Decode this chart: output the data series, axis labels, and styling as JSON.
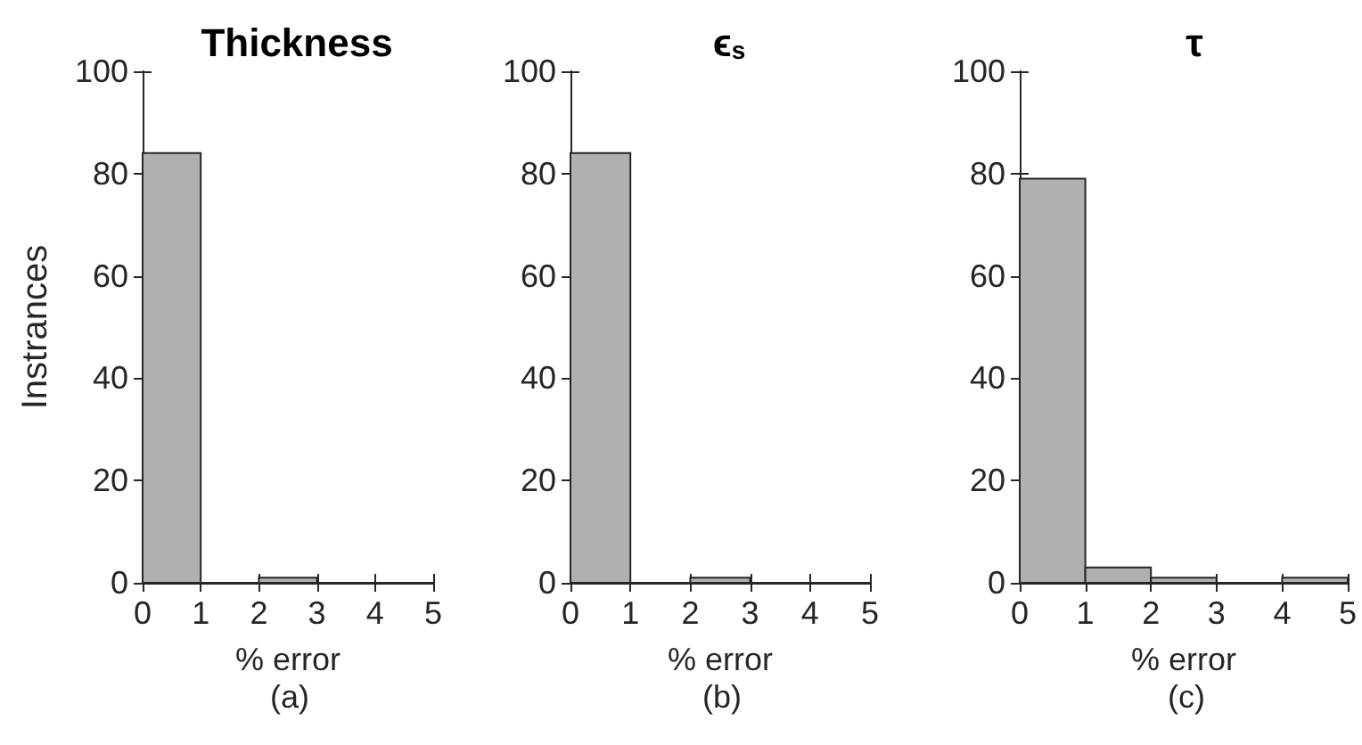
{
  "chart_data": [
    {
      "type": "histogram",
      "title": "Thickness",
      "xlabel": "% error",
      "ylabel": "Instrances",
      "bins": [
        0,
        1,
        2,
        3,
        4,
        5
      ],
      "values": [
        84,
        0,
        1,
        0,
        0
      ],
      "color": "#b0b0b0",
      "xlim": [
        0,
        5
      ],
      "xticks": [
        0,
        1,
        2,
        3,
        4,
        5
      ],
      "ylim": [
        0,
        100
      ],
      "yticks": [
        0,
        20,
        40,
        60,
        80,
        100
      ],
      "annotations": [
        "(a)"
      ]
    },
    {
      "type": "histogram",
      "title": "ϵ$_{s}$",
      "xlabel": "% error",
      "bins": [
        0,
        1,
        2,
        3,
        4,
        5
      ],
      "values": [
        84,
        0,
        1,
        0,
        0
      ],
      "color": "#b0b0b0",
      "xlim": [
        0,
        5
      ],
      "xticks": [
        0,
        1,
        2,
        3,
        4,
        5
      ],
      "ylim": [
        0,
        100
      ],
      "yticks": [
        0,
        20,
        40,
        60,
        80,
        100
      ],
      "annotations": [
        "(b)"
      ]
    },
    {
      "type": "histogram",
      "title": "τ",
      "xlabel": "% error",
      "bins": [
        0,
        1,
        2,
        3,
        4,
        5
      ],
      "values": [
        79,
        3,
        1,
        0,
        1
      ],
      "color": "#b0b0b0",
      "xlim": [
        0,
        5
      ],
      "xticks": [
        0,
        1,
        2,
        3,
        4,
        5
      ],
      "ylim": [
        0,
        100
      ],
      "yticks": [
        0,
        20,
        40,
        60,
        80,
        100
      ],
      "annotations": [
        "(c)"
      ]
    }
  ]
}
